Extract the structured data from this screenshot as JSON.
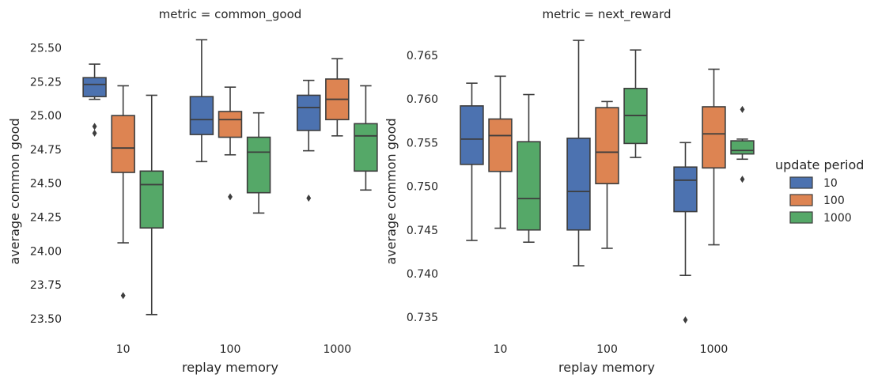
{
  "colors": {
    "10": "#4c72b0",
    "100": "#dd8452",
    "1000": "#55a868",
    "line": "#3d3d3d"
  },
  "legend": {
    "title": "update period",
    "placement": "right",
    "entries": [
      "10",
      "100",
      "1000"
    ]
  },
  "chart_data": [
    {
      "type": "box",
      "title": "metric = common_good",
      "xlabel": "replay memory",
      "ylabel": "average common good",
      "categories": [
        "10",
        "100",
        "1000"
      ],
      "ylim": [
        23.4,
        25.62
      ],
      "yticks": [
        "23.50",
        "23.75",
        "24.00",
        "24.25",
        "24.50",
        "24.75",
        "25.00",
        "25.25",
        "25.50"
      ],
      "grid": false,
      "series": [
        {
          "name": "10",
          "boxes": [
            {
              "whislo": 25.12,
              "q1": 25.14,
              "med": 25.23,
              "q3": 25.28,
              "whishi": 25.38,
              "fliers": [
                24.92,
                24.87
              ]
            },
            {
              "whislo": 24.66,
              "q1": 24.86,
              "med": 24.97,
              "q3": 25.14,
              "whishi": 25.56,
              "fliers": []
            },
            {
              "whislo": 24.74,
              "q1": 24.89,
              "med": 25.06,
              "q3": 25.15,
              "whishi": 25.26,
              "fliers": [
                24.39
              ]
            }
          ]
        },
        {
          "name": "100",
          "boxes": [
            {
              "whislo": 24.06,
              "q1": 24.58,
              "med": 24.76,
              "q3": 25.0,
              "whishi": 25.22,
              "fliers": [
                23.67
              ]
            },
            {
              "whislo": 24.71,
              "q1": 24.84,
              "med": 24.97,
              "q3": 25.03,
              "whishi": 25.21,
              "fliers": [
                24.4
              ]
            },
            {
              "whislo": 24.85,
              "q1": 24.97,
              "med": 25.12,
              "q3": 25.27,
              "whishi": 25.42,
              "fliers": []
            }
          ]
        },
        {
          "name": "1000",
          "boxes": [
            {
              "whislo": 23.53,
              "q1": 24.17,
              "med": 24.49,
              "q3": 24.59,
              "whishi": 25.15,
              "fliers": []
            },
            {
              "whislo": 24.28,
              "q1": 24.43,
              "med": 24.73,
              "q3": 24.84,
              "whishi": 25.02,
              "fliers": []
            },
            {
              "whislo": 24.45,
              "q1": 24.59,
              "med": 24.85,
              "q3": 24.94,
              "whishi": 25.22,
              "fliers": []
            }
          ]
        }
      ]
    },
    {
      "type": "box",
      "title": "metric = next_reward",
      "xlabel": "replay memory",
      "ylabel": "average common good",
      "categories": [
        "10",
        "100",
        "1000"
      ],
      "ylim": [
        0.7333,
        0.7677
      ],
      "yticks": [
        "0.735",
        "0.740",
        "0.745",
        "0.750",
        "0.755",
        "0.760",
        "0.765"
      ],
      "grid": false,
      "series": [
        {
          "name": "10",
          "boxes": [
            {
              "whislo": 0.7438,
              "q1": 0.7525,
              "med": 0.7554,
              "q3": 0.7592,
              "whishi": 0.7618,
              "fliers": []
            },
            {
              "whislo": 0.7409,
              "q1": 0.745,
              "med": 0.7494,
              "q3": 0.7555,
              "whishi": 0.7667,
              "fliers": []
            },
            {
              "whislo": 0.7398,
              "q1": 0.7471,
              "med": 0.7507,
              "q3": 0.7522,
              "whishi": 0.755,
              "fliers": [
                0.7347
              ]
            }
          ]
        },
        {
          "name": "100",
          "boxes": [
            {
              "whislo": 0.7452,
              "q1": 0.7517,
              "med": 0.7558,
              "q3": 0.7577,
              "whishi": 0.7626,
              "fliers": []
            },
            {
              "whislo": 0.7429,
              "q1": 0.7503,
              "med": 0.7539,
              "q3": 0.759,
              "whishi": 0.7597,
              "fliers": []
            },
            {
              "whislo": 0.7433,
              "q1": 0.7521,
              "med": 0.756,
              "q3": 0.7591,
              "whishi": 0.7634,
              "fliers": []
            }
          ]
        },
        {
          "name": "1000",
          "boxes": [
            {
              "whislo": 0.7436,
              "q1": 0.745,
              "med": 0.7486,
              "q3": 0.7551,
              "whishi": 0.7605,
              "fliers": []
            },
            {
              "whislo": 0.7533,
              "q1": 0.7549,
              "med": 0.7581,
              "q3": 0.7612,
              "whishi": 0.7656,
              "fliers": []
            },
            {
              "whislo": 0.7531,
              "q1": 0.7537,
              "med": 0.7541,
              "q3": 0.7552,
              "whishi": 0.7554,
              "fliers": [
                0.7588,
                0.7508
              ]
            }
          ]
        }
      ]
    }
  ]
}
